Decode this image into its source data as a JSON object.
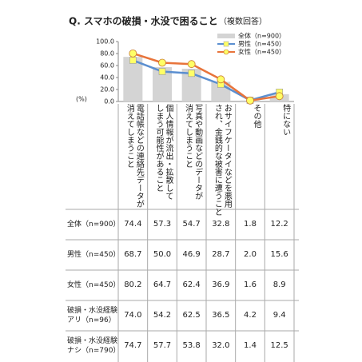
{
  "chart_data": {
    "type": "bar-line",
    "title": "Q. スマホの破損・水没で困ること",
    "subtitle": "（複数回答）",
    "y_label": "(%)",
    "categories": [
      "電話帳などの連絡先データが\n消えてしまうこと",
      "個人情報が流出・拡散して\nしまう可能性があること",
      "写真や動画などのデータが\n消えてしまうこと",
      "おサイフケータイなどを悪用\nされ、金銭的な被害に遭うこと",
      "その他",
      "特にない"
    ],
    "series": [
      {
        "name": "全体（n=900）",
        "kind": "bar",
        "color": "#d4d4d4",
        "values": [
          74.4,
          57.3,
          54.7,
          32.8,
          1.8,
          12.2
        ]
      },
      {
        "name": "男性（n=450）",
        "kind": "line",
        "marker": "square",
        "color": "#5b8fd0",
        "marker_color": "#ffff66",
        "values": [
          68.7,
          50.0,
          46.9,
          28.7,
          2.0,
          15.6
        ]
      },
      {
        "name": "女性（n=450）",
        "kind": "line",
        "marker": "circle",
        "color": "#e8743b",
        "marker_color": "#ffff66",
        "values": [
          80.2,
          64.7,
          62.4,
          36.9,
          1.6,
          8.9
        ]
      }
    ],
    "ylim": [
      0,
      100
    ],
    "yticks": [
      {
        "value": 0,
        "label": "0.0"
      },
      {
        "value": 20,
        "label": "20.0"
      },
      {
        "value": 40,
        "label": "40.0"
      },
      {
        "value": 60,
        "label": "60.0"
      },
      {
        "value": 80,
        "label": "80.0"
      },
      {
        "value": 100,
        "label": "100.0"
      }
    ],
    "legend": "top-right",
    "table": {
      "rows": [
        {
          "label": "全体（n=900）",
          "cells": [
            "74.4",
            "57.3",
            "54.7",
            "32.8",
            "1.8",
            "12.2"
          ]
        },
        {
          "label": "男性（n=450）",
          "cells": [
            "68.7",
            "50.0",
            "46.9",
            "28.7",
            "2.0",
            "15.6"
          ]
        },
        {
          "label": "女性（n=450）",
          "cells": [
            "80.2",
            "64.7",
            "62.4",
            "36.9",
            "1.6",
            "8.9"
          ]
        },
        {
          "label": "破損・水没経験\nアリ（n=96）",
          "cells": [
            "74.0",
            "54.2",
            "62.5",
            "36.5",
            "4.2",
            "9.4"
          ]
        },
        {
          "label": "破損・水没経験\nナシ（n=790）",
          "cells": [
            "74.7",
            "57.7",
            "53.8",
            "32.0",
            "1.4",
            "12.5"
          ]
        }
      ]
    }
  }
}
